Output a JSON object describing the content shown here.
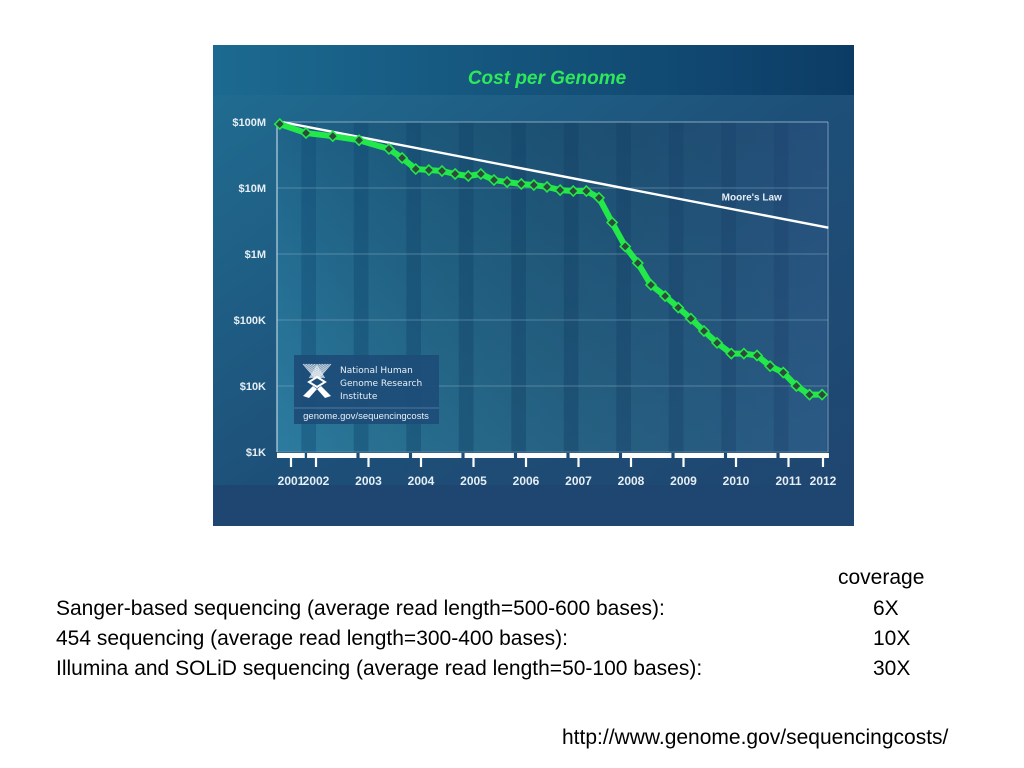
{
  "chart_data": {
    "type": "line",
    "title": "Cost per Genome",
    "xlabel": "",
    "ylabel": "",
    "yscale": "log",
    "ylim": [
      1000,
      100000000
    ],
    "y_ticks": [
      {
        "value": 100000000,
        "label": "$100M"
      },
      {
        "value": 10000000,
        "label": "$10M"
      },
      {
        "value": 1000000,
        "label": "$1M"
      },
      {
        "value": 100000,
        "label": "$100K"
      },
      {
        "value": 10000,
        "label": "$10K"
      },
      {
        "value": 1000,
        "label": "$1K"
      }
    ],
    "x_ticks": [
      {
        "value": 2001.28,
        "label": "2001"
      },
      {
        "value": 2002,
        "label": "2002"
      },
      {
        "value": 2003,
        "label": "2003"
      },
      {
        "value": 2004,
        "label": "2004"
      },
      {
        "value": 2005,
        "label": "2005"
      },
      {
        "value": 2006,
        "label": "2006"
      },
      {
        "value": 2007,
        "label": "2007"
      },
      {
        "value": 2008,
        "label": "2008"
      },
      {
        "value": 2009,
        "label": "2009"
      },
      {
        "value": 2010,
        "label": "2010"
      },
      {
        "value": 2011,
        "label": "2011"
      },
      {
        "value": 2011.67,
        "label": "2012"
      }
    ],
    "xlim": [
      2001.2,
      2011.75
    ],
    "grid": true,
    "series": [
      {
        "name": "Cost per Genome",
        "color": "#22e84a",
        "marker": "diamond",
        "x": [
          2001.31,
          2001.81,
          2002.32,
          2002.82,
          2003.39,
          2003.64,
          2003.9,
          2004.15,
          2004.4,
          2004.65,
          2004.9,
          2005.14,
          2005.39,
          2005.64,
          2005.91,
          2006.15,
          2006.4,
          2006.65,
          2006.9,
          2007.15,
          2007.39,
          2007.64,
          2007.89,
          2008.13,
          2008.38,
          2008.65,
          2008.9,
          2009.14,
          2009.39,
          2009.64,
          2009.91,
          2010.15,
          2010.4,
          2010.65,
          2010.9,
          2011.15,
          2011.4,
          2011.64
        ],
        "values": [
          93000000,
          68000000,
          61000000,
          53000000,
          39000000,
          28500000,
          19400000,
          18700000,
          18100000,
          16300000,
          15200000,
          16300000,
          13200000,
          12300000,
          11500000,
          11100000,
          10400000,
          9300000,
          9000000,
          9000000,
          7100000,
          3000000,
          1300000,
          730000,
          340000,
          230000,
          154000,
          105000,
          68000,
          45000,
          31000,
          31000,
          29000,
          20000,
          16000,
          10000,
          7400,
          7400
        ]
      },
      {
        "name": "Moore's Law",
        "color": "#ffffff",
        "marker": "none",
        "x": [
          2001.35,
          2011.76
        ],
        "values": [
          100000000,
          2500000
        ]
      }
    ],
    "annotations": [
      {
        "text": "Moore's Law",
        "x": 2010.3,
        "y": 6500000
      }
    ],
    "legend": "none",
    "logo": {
      "lines": [
        "National Human",
        "Genome Research",
        "Institute"
      ],
      "url": "genome.gov/sequencingcosts"
    },
    "colors": {
      "background_top": "#1f6a8f",
      "background_bottom": "#1f4670",
      "title": "#2ee85a",
      "text": "#e6eef5"
    }
  },
  "coverage_table": {
    "header": "coverage",
    "rows": [
      {
        "label": "Sanger-based sequencing (average read length=500-600 bases):",
        "value": "6X"
      },
      {
        "label": "454 sequencing (average read length=300-400 bases):",
        "value": "10X"
      },
      {
        "label": "Illumina and SOLiD sequencing (average read length=50-100 bases):",
        "value": "30X"
      }
    ]
  },
  "source_url": "http://www.genome.gov/sequencingcosts/"
}
